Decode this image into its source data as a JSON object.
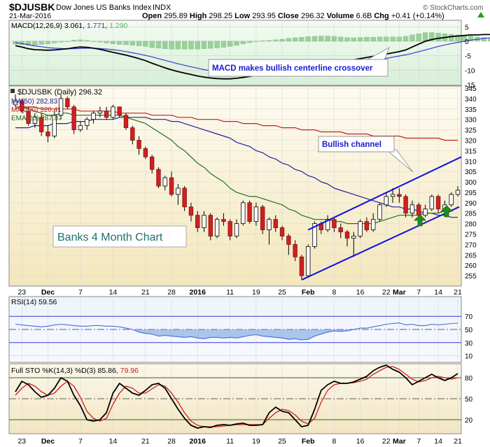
{
  "header": {
    "symbol": "$DJUSBK",
    "name": "Dow Jones US Banks Index",
    "exchange": "INDX",
    "date": "21-Mar-2016",
    "watermark": "© StockCharts.com",
    "open_label": "Open",
    "open": "295.89",
    "high_label": "High",
    "high": "298.25",
    "low_label": "Low",
    "low": "293.95",
    "close_label": "Close",
    "close": "296.32",
    "volume_label": "Volume",
    "volume": "6.6B",
    "chg_label": "Chg",
    "chg": "+0.41 (+0.14%)"
  },
  "colors": {
    "up_candle": "#ffffff",
    "down_candle": "#d02020",
    "ma50": "#2020a0",
    "ma200": "#c02020",
    "ema20": "#207020",
    "channel": "#1010e0",
    "arrow": "#208020",
    "macd_hist": "#9bd09b"
  },
  "chart_data": [
    {
      "type": "bar",
      "panel": "macd",
      "legend": {
        "label": "MACD(12,26,9)",
        "macd": "3.061",
        "signal": "1.771",
        "histogram": "1.290"
      },
      "y_ticks": [
        "5",
        "0",
        "-5",
        "-10",
        "-15"
      ],
      "ylim": [
        -15,
        7
      ],
      "macd": [
        -1.5,
        -2.0,
        -2.6,
        -2.9,
        -3.0,
        -3.1,
        -3.0,
        -2.8,
        -2.6,
        -2.2,
        -2.0,
        -2.1,
        -2.4,
        -2.8,
        -3.3,
        -3.8,
        -4.3,
        -4.8,
        -5.4,
        -6.0,
        -6.7,
        -7.6,
        -8.4,
        -9.2,
        -9.9,
        -10.5,
        -11.0,
        -11.5,
        -12.0,
        -12.4,
        -12.7,
        -12.9,
        -13.0,
        -13.0,
        -12.8,
        -12.5,
        -12.2,
        -11.8,
        -11.5,
        -11.3,
        -11.0,
        -10.6,
        -10.1,
        -9.6,
        -9.1,
        -8.6,
        -8.1,
        -7.6,
        -7.2,
        -6.9,
        -6.7,
        -6.6,
        -6.4,
        -6.0,
        -5.6,
        -5.2,
        -4.8,
        -4.4,
        -4.0,
        -3.6,
        -3.0,
        -2.0,
        -1.0,
        0.0,
        0.6,
        1.0,
        1.3,
        1.6,
        1.8,
        2.0,
        2.2,
        2.2,
        2.3,
        2.3,
        2.4,
        2.4,
        2.5,
        2.6,
        2.7,
        2.9,
        3.06
      ],
      "signal": [
        -0.5,
        -0.8,
        -1.2,
        -1.6,
        -1.9,
        -2.2,
        -2.4,
        -2.5,
        -2.6,
        -2.6,
        -2.5,
        -2.4,
        -2.4,
        -2.5,
        -2.7,
        -2.9,
        -3.2,
        -3.6,
        -4.0,
        -4.4,
        -4.9,
        -5.4,
        -6.0,
        -6.6,
        -7.2,
        -7.8,
        -8.3,
        -8.8,
        -9.3,
        -9.8,
        -10.2,
        -10.6,
        -10.9,
        -11.2,
        -11.4,
        -11.6,
        -11.7,
        -11.7,
        -11.7,
        -11.6,
        -11.5,
        -11.3,
        -11.1,
        -10.8,
        -10.5,
        -10.2,
        -9.8,
        -9.4,
        -9.0,
        -8.6,
        -8.2,
        -7.9,
        -7.6,
        -7.3,
        -7.0,
        -6.6,
        -6.3,
        -5.9,
        -5.5,
        -5.1,
        -4.7,
        -4.2,
        -3.6,
        -3.0,
        -2.4,
        -1.8,
        -1.3,
        -0.8,
        -0.4,
        0.0,
        0.4,
        0.7,
        1.0,
        1.2,
        1.4,
        1.5,
        1.6,
        1.6,
        1.7,
        1.7,
        1.77
      ],
      "annotation": "MACD makes bullish centerline crossover"
    },
    {
      "type": "candlestick",
      "panel": "price",
      "title": "$DJUSBK (Daily) 296.32",
      "ylim": [
        250,
        346
      ],
      "y_ticks": [
        "345",
        "340",
        "335",
        "330",
        "325",
        "320",
        "315",
        "310",
        "305",
        "300",
        "295",
        "290",
        "285",
        "280",
        "275",
        "270",
        "265",
        "260",
        "255"
      ],
      "ohlc": [
        [
          337,
          342,
          336,
          339
        ],
        [
          339,
          340,
          333,
          334
        ],
        [
          334,
          336,
          327,
          328
        ],
        [
          328,
          333,
          326,
          331
        ],
        [
          331,
          333,
          322,
          324
        ],
        [
          324,
          327,
          319,
          322
        ],
        [
          322,
          334,
          321,
          332
        ],
        [
          332,
          342,
          330,
          340
        ],
        [
          340,
          341,
          335,
          336
        ],
        [
          336,
          337,
          323,
          325
        ],
        [
          325,
          329,
          324,
          327
        ],
        [
          327,
          331,
          325,
          330
        ],
        [
          330,
          334,
          328,
          333
        ],
        [
          333,
          336,
          331,
          334
        ],
        [
          334,
          336,
          330,
          331
        ],
        [
          331,
          337,
          330,
          336
        ],
        [
          336,
          336,
          331,
          332
        ],
        [
          332,
          333,
          325,
          326
        ],
        [
          326,
          327,
          318,
          320
        ],
        [
          320,
          322,
          313,
          316
        ],
        [
          316,
          317,
          311,
          312
        ],
        [
          312,
          313,
          304,
          306
        ],
        [
          306,
          307,
          297,
          298
        ],
        [
          298,
          303,
          296,
          302
        ],
        [
          302,
          305,
          293,
          294
        ],
        [
          294,
          299,
          289,
          297
        ],
        [
          297,
          298,
          286,
          288
        ],
        [
          288,
          290,
          281,
          284
        ],
        [
          284,
          286,
          276,
          278
        ],
        [
          278,
          286,
          276,
          284
        ],
        [
          284,
          285,
          272,
          274
        ],
        [
          274,
          283,
          273,
          282
        ],
        [
          282,
          285,
          279,
          281
        ],
        [
          281,
          282,
          272,
          274
        ],
        [
          274,
          282,
          273,
          280
        ],
        [
          280,
          291,
          279,
          290
        ],
        [
          290,
          291,
          280,
          281
        ],
        [
          281,
          290,
          279,
          288
        ],
        [
          288,
          289,
          275,
          277
        ],
        [
          277,
          283,
          270,
          282
        ],
        [
          282,
          284,
          276,
          278
        ],
        [
          278,
          279,
          272,
          274
        ],
        [
          274,
          275,
          265,
          270
        ],
        [
          270,
          272,
          262,
          264
        ],
        [
          264,
          265,
          253,
          255
        ],
        [
          255,
          270,
          254,
          269
        ],
        [
          269,
          281,
          268,
          280
        ],
        [
          280,
          281,
          275,
          277
        ],
        [
          277,
          284,
          276,
          282
        ],
        [
          282,
          283,
          276,
          278
        ],
        [
          278,
          280,
          273,
          276
        ],
        [
          276,
          277,
          269,
          273
        ],
        [
          273,
          276,
          264,
          274
        ],
        [
          274,
          282,
          273,
          281
        ],
        [
          281,
          283,
          276,
          277
        ],
        [
          277,
          285,
          276,
          282
        ],
        [
          282,
          290,
          281,
          289
        ],
        [
          289,
          295,
          288,
          293
        ],
        [
          293,
          297,
          290,
          294
        ],
        [
          294,
          297,
          290,
          293
        ],
        [
          293,
          294,
          283,
          285
        ],
        [
          285,
          291,
          283,
          289
        ],
        [
          289,
          290,
          283,
          284
        ],
        [
          284,
          289,
          283,
          287
        ],
        [
          287,
          294,
          286,
          293
        ],
        [
          293,
          294,
          285,
          287
        ],
        [
          287,
          291,
          285,
          289
        ],
        [
          289,
          295,
          288,
          294
        ],
        [
          294,
          298,
          293,
          296
        ]
      ],
      "series": [
        {
          "name": "MA(50)",
          "value": "282.83",
          "color": "#2020a0",
          "values": [
            326,
            326,
            326,
            327,
            327,
            327,
            328,
            328,
            328,
            329,
            329,
            329,
            330,
            330,
            330,
            330,
            331,
            331,
            331,
            331,
            331,
            330,
            330,
            330,
            329,
            329,
            328,
            327,
            326,
            325,
            324,
            323,
            322,
            321,
            319,
            318,
            317,
            315,
            314,
            312,
            311,
            309,
            308,
            306,
            305,
            303,
            302,
            300,
            299,
            297,
            296,
            295,
            294,
            293,
            292,
            291,
            290,
            289,
            288,
            288,
            287,
            287,
            286,
            285,
            285,
            284,
            284,
            283,
            283
          ]
        },
        {
          "name": "MA(200)",
          "value": "320.41",
          "color": "#c02020",
          "values": [
            336,
            336,
            336,
            336,
            335,
            335,
            335,
            335,
            335,
            335,
            334,
            334,
            334,
            334,
            334,
            334,
            333,
            333,
            333,
            333,
            333,
            332,
            332,
            332,
            332,
            331,
            331,
            331,
            330,
            330,
            330,
            330,
            329,
            329,
            329,
            328,
            328,
            328,
            327,
            327,
            327,
            326,
            326,
            326,
            325,
            325,
            325,
            324,
            324,
            324,
            324,
            323,
            323,
            323,
            323,
            322,
            322,
            322,
            322,
            322,
            321,
            321,
            321,
            321,
            321,
            321,
            320,
            320,
            320
          ]
        },
        {
          "name": "EMA(20)",
          "value": "287.87",
          "color": "#207020",
          "values": [
            335,
            336,
            335,
            334,
            333,
            332,
            332,
            333,
            333,
            332,
            332,
            332,
            332,
            332,
            332,
            332,
            332,
            331,
            330,
            329,
            328,
            326,
            324,
            322,
            320,
            317,
            315,
            312,
            309,
            307,
            304,
            302,
            300,
            297,
            295,
            294,
            293,
            293,
            292,
            291,
            290,
            289,
            287,
            286,
            284,
            283,
            282,
            282,
            282,
            281,
            281,
            280,
            280,
            280,
            280,
            280,
            281,
            282,
            283,
            284,
            284,
            284,
            284,
            285,
            285,
            285,
            286,
            286,
            288
          ]
        }
      ],
      "x_labels": [
        "23",
        "Dec",
        "7",
        "14",
        "21",
        "28",
        "2016",
        "11",
        "19",
        "25",
        "Feb",
        "8",
        "16",
        "22",
        "Mar",
        "7",
        "14",
        "21"
      ],
      "annotations": [
        "Bullish channel",
        "Banks 4 Month Chart"
      ]
    },
    {
      "type": "line",
      "panel": "rsi",
      "legend": {
        "label": "RSI(14)",
        "value": "59.56"
      },
      "y_ticks": [
        "70",
        "50",
        "30",
        "10"
      ],
      "ylim": [
        0,
        100
      ],
      "values": [
        58,
        57,
        56,
        55,
        54,
        55,
        57,
        58,
        57,
        56,
        55,
        55,
        56,
        56,
        55,
        55,
        54,
        52,
        50,
        46,
        44,
        43,
        40,
        41,
        40,
        39,
        38,
        39,
        37,
        36,
        38,
        38,
        37,
        38,
        37,
        39,
        41,
        42,
        40,
        39,
        38,
        37,
        35,
        36,
        34,
        35,
        40,
        43,
        46,
        48,
        47,
        48,
        50,
        52,
        52,
        54,
        56,
        58,
        59,
        60,
        57,
        58,
        56,
        56,
        58,
        57,
        58,
        59,
        59.56
      ]
    },
    {
      "type": "line",
      "panel": "stochastic",
      "legend": {
        "label": "Full STO %K(14,3) %D(3)",
        "k": "85.86",
        "d": "79.96"
      },
      "y_ticks": [
        "80",
        "50",
        "20"
      ],
      "ylim": [
        0,
        100
      ],
      "series": [
        {
          "name": "%K",
          "values": [
            60,
            75,
            70,
            60,
            52,
            55,
            65,
            80,
            75,
            55,
            40,
            20,
            18,
            20,
            30,
            58,
            72,
            65,
            58,
            55,
            62,
            70,
            72,
            65,
            50,
            35,
            22,
            12,
            8,
            10,
            9,
            12,
            13,
            12,
            14,
            15,
            12,
            12,
            13,
            30,
            38,
            32,
            30,
            20,
            10,
            12,
            35,
            62,
            70,
            75,
            72,
            72,
            74,
            78,
            82,
            90,
            95,
            98,
            92,
            88,
            80,
            70,
            75,
            80,
            85,
            80,
            76,
            80,
            85.86
          ]
        },
        {
          "name": "%D",
          "values": [
            55,
            65,
            72,
            68,
            60,
            55,
            58,
            68,
            75,
            68,
            52,
            32,
            22,
            18,
            22,
            42,
            58,
            68,
            65,
            58,
            58,
            64,
            70,
            68,
            58,
            45,
            30,
            18,
            12,
            10,
            10,
            10,
            11,
            12,
            13,
            13,
            13,
            13,
            13,
            22,
            30,
            35,
            33,
            27,
            18,
            14,
            22,
            45,
            62,
            70,
            72,
            72,
            73,
            75,
            78,
            85,
            90,
            95,
            96,
            92,
            85,
            78,
            74,
            76,
            80,
            82,
            80,
            78,
            79.96
          ]
        }
      ]
    }
  ]
}
